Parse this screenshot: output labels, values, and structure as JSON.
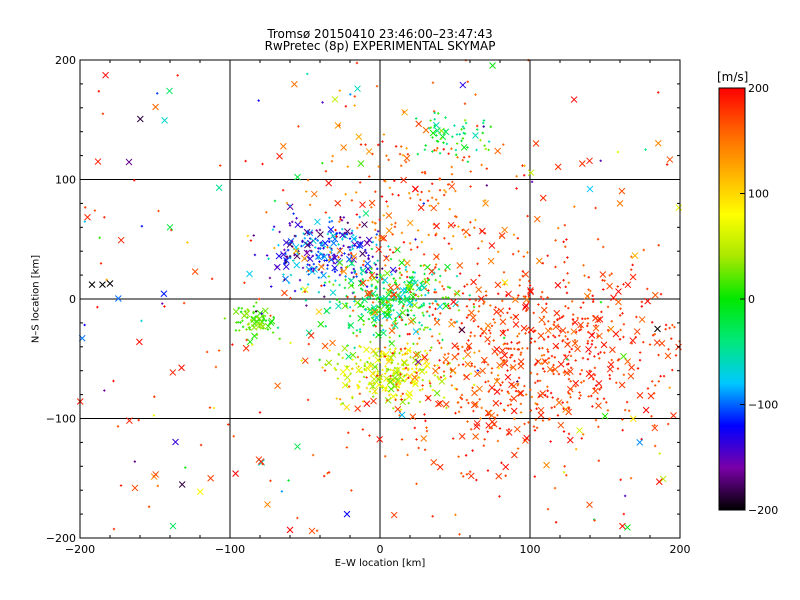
{
  "chart_data": {
    "type": "scatter",
    "title": "Tromsø 20150410 23:46:00–23:47:43",
    "subtitle": "RwPretec (8p) EXPERIMENTAL SKYMAP",
    "xlabel": "E–W location [km]",
    "ylabel": "N–S location [km]",
    "xlim": [
      -200,
      200
    ],
    "ylim": [
      -200,
      200
    ],
    "xticks": [
      -200,
      -100,
      0,
      100,
      200
    ],
    "yticks": [
      -200,
      -100,
      0,
      100,
      200
    ],
    "grid": true,
    "colorbar": {
      "label": "[m/s]",
      "range": [
        -200,
        200
      ],
      "ticks": [
        200,
        100,
        0,
        -100,
        -200
      ],
      "colors": [
        "#000000",
        "#7a00a8",
        "#0000ff",
        "#00c8ff",
        "#00e87a",
        "#00e800",
        "#a8e800",
        "#ffff00",
        "#ffb000",
        "#ff6000",
        "#ff0000"
      ]
    },
    "markers": [
      "x",
      "+"
    ],
    "clusters": [
      {
        "region": "north-west",
        "center": [
          -38,
          40
        ],
        "radius": [
          18,
          14
        ],
        "velocity_range": [
          -180,
          -60
        ]
      },
      {
        "region": "center",
        "center": [
          5,
          0
        ],
        "radius": [
          22,
          16
        ],
        "velocity_range": [
          -80,
          40
        ]
      },
      {
        "region": "south",
        "center": [
          8,
          -62
        ],
        "radius": [
          20,
          12
        ],
        "velocity_range": [
          20,
          110
        ]
      },
      {
        "region": "west",
        "center": [
          -85,
          -18
        ],
        "radius": [
          8,
          6
        ],
        "velocity_range": [
          0,
          40
        ]
      },
      {
        "region": "south-east",
        "center": [
          120,
          -40
        ],
        "radius": [
          45,
          35
        ],
        "velocity_range": [
          160,
          200
        ]
      },
      {
        "region": "east",
        "center": [
          70,
          -60
        ],
        "radius": [
          50,
          50
        ],
        "velocity_range": [
          140,
          200
        ]
      },
      {
        "region": "north",
        "center": [
          20,
          60
        ],
        "radius": [
          40,
          50
        ],
        "velocity_range": [
          120,
          200
        ]
      },
      {
        "region": "north-center",
        "center": [
          48,
          138
        ],
        "radius": [
          15,
          10
        ],
        "velocity_range": [
          -60,
          40
        ]
      }
    ],
    "sample_points": [
      {
        "x": -188,
        "y": 115,
        "v": 190
      },
      {
        "x": -185,
        "y": 12,
        "v": -200
      },
      {
        "x": -180,
        "y": 13,
        "v": -200
      },
      {
        "x": -192,
        "y": 12,
        "v": -200
      },
      {
        "x": -140,
        "y": 60,
        "v": -20
      },
      {
        "x": -138,
        "y": -190,
        "v": -30
      },
      {
        "x": -55,
        "y": 102,
        "v": -20
      },
      {
        "x": -30,
        "y": 167,
        "v": 50
      },
      {
        "x": -15,
        "y": 176,
        "v": -60
      },
      {
        "x": 140,
        "y": 92,
        "v": -80
      },
      {
        "x": 160,
        "y": 80,
        "v": 150
      },
      {
        "x": 185,
        "y": -25,
        "v": -200
      },
      {
        "x": 150,
        "y": -98,
        "v": 10
      },
      {
        "x": 133,
        "y": -110,
        "v": 60
      },
      {
        "x": -22,
        "y": -180,
        "v": -120
      },
      {
        "x": -75,
        "y": -172,
        "v": 140
      }
    ],
    "num_points_approx": 2200
  }
}
